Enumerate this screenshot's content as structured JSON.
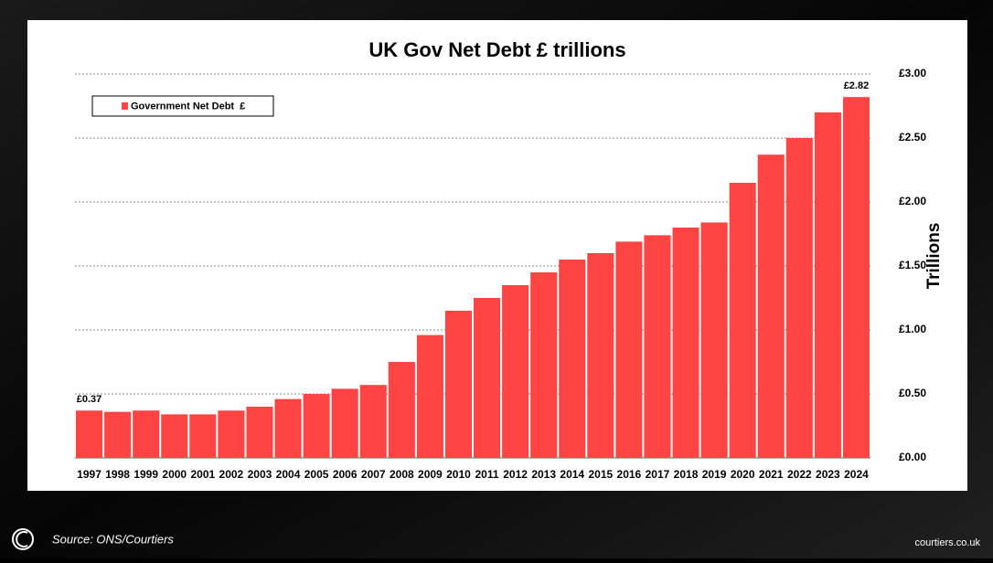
{
  "chart_data": {
    "type": "bar",
    "title": "UK Gov Net Debt £ trillions",
    "y_label": "Trillions",
    "categories": [
      "1997",
      "1998",
      "1999",
      "2000",
      "2001",
      "2002",
      "2003",
      "2004",
      "2005",
      "2006",
      "2007",
      "2008",
      "2009",
      "2010",
      "2011",
      "2012",
      "2013",
      "2014",
      "2015",
      "2016",
      "2017",
      "2018",
      "2019",
      "2020",
      "2021",
      "2022",
      "2023",
      "2024"
    ],
    "series": [
      {
        "name": "Government Net Debt  £",
        "color": "#ff4444",
        "values": [
          0.37,
          0.36,
          0.37,
          0.34,
          0.34,
          0.37,
          0.4,
          0.46,
          0.5,
          0.54,
          0.57,
          0.75,
          0.96,
          1.15,
          1.25,
          1.35,
          1.45,
          1.55,
          1.6,
          1.69,
          1.74,
          1.8,
          1.84,
          2.15,
          2.37,
          2.5,
          2.7,
          2.82
        ],
        "value_labels": [
          "£0.37",
          null,
          null,
          null,
          null,
          null,
          null,
          null,
          null,
          null,
          null,
          null,
          null,
          null,
          null,
          null,
          null,
          null,
          null,
          null,
          null,
          null,
          null,
          null,
          null,
          null,
          null,
          "£2.82"
        ]
      }
    ],
    "ylim": [
      0,
      3
    ],
    "yaxis_side": "right",
    "yticks": [
      {
        "value": 0,
        "label": "£0.00"
      },
      {
        "value": 0.5,
        "label": "£0.50"
      },
      {
        "value": 1,
        "label": "£1.00"
      },
      {
        "value": 1.5,
        "label": "£1.50"
      },
      {
        "value": 2,
        "label": "£2.00"
      },
      {
        "value": 2.5,
        "label": "£2.50"
      },
      {
        "value": 3,
        "label": "£3.00"
      }
    ],
    "grid": true,
    "legend": "upper left"
  },
  "footer": {
    "source": "Source: ONS/Courtiers",
    "website": "courtiers.co.uk"
  }
}
